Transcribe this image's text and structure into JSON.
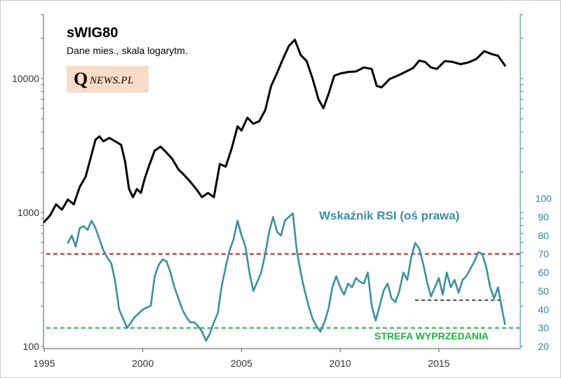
{
  "chart_data": {
    "type": "line",
    "title": "sWIG80",
    "subtitle": "Dane mies., skala logarytm.",
    "logo": {
      "q": "Q",
      "rest": "NEWS.PL"
    },
    "x_ticks": [
      "1995",
      "2000",
      "2005",
      "2010",
      "2015"
    ],
    "x_range": [
      1995,
      2019.2
    ],
    "left_axis": {
      "scale": "log",
      "range": [
        100,
        30000
      ],
      "tick_values": [
        100,
        1000,
        10000
      ],
      "tick_labels": [
        "100",
        "1000",
        "10000"
      ]
    },
    "right_axis": {
      "scale": "linear",
      "range": [
        20,
        100
      ],
      "tick_labels": [
        "20",
        "30",
        "40",
        "50",
        "60",
        "70",
        "80",
        "90",
        "100"
      ]
    },
    "series": [
      {
        "role": "index",
        "axis": "left",
        "color": "#000000",
        "points": [
          [
            1995.0,
            850
          ],
          [
            1995.3,
            950
          ],
          [
            1995.6,
            1150
          ],
          [
            1995.9,
            1050
          ],
          [
            1996.2,
            1250
          ],
          [
            1996.5,
            1150
          ],
          [
            1996.8,
            1550
          ],
          [
            1997.1,
            1850
          ],
          [
            1997.4,
            2700
          ],
          [
            1997.6,
            3500
          ],
          [
            1997.8,
            3700
          ],
          [
            1998.0,
            3400
          ],
          [
            1998.3,
            3600
          ],
          [
            1998.6,
            3400
          ],
          [
            1998.9,
            3200
          ],
          [
            1999.1,
            2400
          ],
          [
            1999.3,
            1500
          ],
          [
            1999.5,
            1300
          ],
          [
            1999.7,
            1500
          ],
          [
            1999.9,
            1400
          ],
          [
            2000.1,
            1800
          ],
          [
            2000.3,
            2200
          ],
          [
            2000.6,
            2900
          ],
          [
            2000.9,
            3100
          ],
          [
            2001.2,
            2800
          ],
          [
            2001.5,
            2500
          ],
          [
            2001.8,
            2100
          ],
          [
            2002.1,
            1900
          ],
          [
            2002.4,
            1700
          ],
          [
            2002.7,
            1500
          ],
          [
            2003.0,
            1300
          ],
          [
            2003.3,
            1400
          ],
          [
            2003.6,
            1300
          ],
          [
            2003.9,
            2300
          ],
          [
            2004.2,
            2200
          ],
          [
            2004.5,
            3000
          ],
          [
            2004.8,
            4400
          ],
          [
            2005.0,
            4100
          ],
          [
            2005.3,
            5100
          ],
          [
            2005.6,
            4600
          ],
          [
            2005.9,
            4800
          ],
          [
            2006.2,
            5800
          ],
          [
            2006.5,
            8800
          ],
          [
            2006.8,
            11000
          ],
          [
            2007.1,
            14000
          ],
          [
            2007.4,
            17500
          ],
          [
            2007.7,
            19500
          ],
          [
            2008.0,
            15000
          ],
          [
            2008.3,
            13500
          ],
          [
            2008.6,
            10000
          ],
          [
            2008.9,
            7000
          ],
          [
            2009.15,
            6000
          ],
          [
            2009.4,
            7600
          ],
          [
            2009.7,
            10500
          ],
          [
            2010.0,
            10900
          ],
          [
            2010.4,
            11200
          ],
          [
            2010.8,
            11300
          ],
          [
            2011.2,
            12100
          ],
          [
            2011.6,
            11800
          ],
          [
            2011.85,
            8800
          ],
          [
            2012.1,
            8600
          ],
          [
            2012.5,
            9900
          ],
          [
            2012.9,
            10500
          ],
          [
            2013.3,
            11200
          ],
          [
            2013.7,
            12000
          ],
          [
            2014.0,
            13600
          ],
          [
            2014.3,
            13300
          ],
          [
            2014.6,
            12100
          ],
          [
            2014.9,
            11800
          ],
          [
            2015.3,
            13500
          ],
          [
            2015.7,
            13300
          ],
          [
            2016.1,
            12800
          ],
          [
            2016.5,
            13200
          ],
          [
            2016.9,
            14000
          ],
          [
            2017.3,
            16000
          ],
          [
            2017.7,
            15200
          ],
          [
            2018.0,
            14800
          ],
          [
            2018.35,
            12500
          ]
        ]
      },
      {
        "name": "Wskaźnik RSI (oś prawa)",
        "axis": "right",
        "color": "#3c8fa5",
        "points": [
          [
            1996.2,
            76
          ],
          [
            1996.4,
            80
          ],
          [
            1996.6,
            74
          ],
          [
            1996.8,
            84
          ],
          [
            1997.0,
            85
          ],
          [
            1997.2,
            83
          ],
          [
            1997.4,
            88
          ],
          [
            1997.6,
            84
          ],
          [
            1997.8,
            78
          ],
          [
            1998.0,
            72
          ],
          [
            1998.2,
            68
          ],
          [
            1998.4,
            65
          ],
          [
            1998.6,
            55
          ],
          [
            1998.8,
            40
          ],
          [
            1999.0,
            35
          ],
          [
            1999.2,
            30
          ],
          [
            1999.4,
            33
          ],
          [
            1999.6,
            36
          ],
          [
            1999.8,
            38
          ],
          [
            2000.0,
            40
          ],
          [
            2000.2,
            41
          ],
          [
            2000.4,
            42
          ],
          [
            2000.6,
            58
          ],
          [
            2000.8,
            64
          ],
          [
            2001.0,
            67
          ],
          [
            2001.2,
            66
          ],
          [
            2001.4,
            60
          ],
          [
            2001.6,
            52
          ],
          [
            2001.8,
            46
          ],
          [
            2002.0,
            40
          ],
          [
            2002.2,
            36
          ],
          [
            2002.4,
            33
          ],
          [
            2002.6,
            33
          ],
          [
            2002.8,
            31
          ],
          [
            2003.0,
            28
          ],
          [
            2003.2,
            23
          ],
          [
            2003.4,
            27
          ],
          [
            2003.6,
            33
          ],
          [
            2003.8,
            38
          ],
          [
            2004.0,
            53
          ],
          [
            2004.2,
            63
          ],
          [
            2004.4,
            72
          ],
          [
            2004.6,
            78
          ],
          [
            2004.8,
            88
          ],
          [
            2005.0,
            80
          ],
          [
            2005.2,
            74
          ],
          [
            2005.4,
            60
          ],
          [
            2005.6,
            50
          ],
          [
            2005.8,
            55
          ],
          [
            2006.0,
            60
          ],
          [
            2006.2,
            70
          ],
          [
            2006.4,
            82
          ],
          [
            2006.6,
            90
          ],
          [
            2006.8,
            82
          ],
          [
            2007.0,
            80
          ],
          [
            2007.2,
            88
          ],
          [
            2007.4,
            90
          ],
          [
            2007.6,
            92
          ],
          [
            2007.8,
            72
          ],
          [
            2008.0,
            60
          ],
          [
            2008.2,
            50
          ],
          [
            2008.4,
            42
          ],
          [
            2008.6,
            35
          ],
          [
            2008.8,
            31
          ],
          [
            2009.0,
            28
          ],
          [
            2009.2,
            33
          ],
          [
            2009.4,
            40
          ],
          [
            2009.6,
            52
          ],
          [
            2009.8,
            58
          ],
          [
            2010.0,
            52
          ],
          [
            2010.2,
            48
          ],
          [
            2010.4,
            54
          ],
          [
            2010.6,
            52
          ],
          [
            2010.8,
            57
          ],
          [
            2011.0,
            55
          ],
          [
            2011.2,
            54
          ],
          [
            2011.4,
            60
          ],
          [
            2011.6,
            42
          ],
          [
            2011.8,
            34
          ],
          [
            2012.0,
            42
          ],
          [
            2012.2,
            50
          ],
          [
            2012.4,
            54
          ],
          [
            2012.6,
            46
          ],
          [
            2012.8,
            44
          ],
          [
            2013.0,
            50
          ],
          [
            2013.2,
            60
          ],
          [
            2013.4,
            56
          ],
          [
            2013.6,
            68
          ],
          [
            2013.8,
            76
          ],
          [
            2014.0,
            73
          ],
          [
            2014.2,
            65
          ],
          [
            2014.4,
            55
          ],
          [
            2014.6,
            47
          ],
          [
            2014.8,
            52
          ],
          [
            2015.0,
            57
          ],
          [
            2015.2,
            48
          ],
          [
            2015.4,
            60
          ],
          [
            2015.6,
            52
          ],
          [
            2015.8,
            56
          ],
          [
            2016.0,
            49
          ],
          [
            2016.2,
            56
          ],
          [
            2016.4,
            58
          ],
          [
            2016.6,
            62
          ],
          [
            2016.8,
            66
          ],
          [
            2017.0,
            71
          ],
          [
            2017.2,
            70
          ],
          [
            2017.4,
            63
          ],
          [
            2017.6,
            52
          ],
          [
            2017.8,
            46
          ],
          [
            2018.0,
            52
          ],
          [
            2018.2,
            40
          ],
          [
            2018.35,
            32
          ]
        ]
      }
    ],
    "reference_lines": [
      {
        "axis": "right",
        "value": 70,
        "x_range": [
          1995.1,
          2019.1
        ],
        "color": "#e11919",
        "style": "dashed"
      },
      {
        "axis": "right",
        "value": 30,
        "x_range": [
          1995.1,
          2019.1
        ],
        "color": "#1eb43c",
        "style": "dashed",
        "label": "STREFA WYPRZEDANIA"
      },
      {
        "axis": "right",
        "value": 45,
        "x_range": [
          2013.8,
          2018.3
        ],
        "color": "#000000",
        "style": "dashed"
      }
    ],
    "rsi_label": "Wskaźnik RSI (oś prawa)",
    "oversold_label": "STREFA WYPRZEDANIA",
    "grid": false,
    "legend": "none",
    "axis_color": "#2e8aa0"
  }
}
